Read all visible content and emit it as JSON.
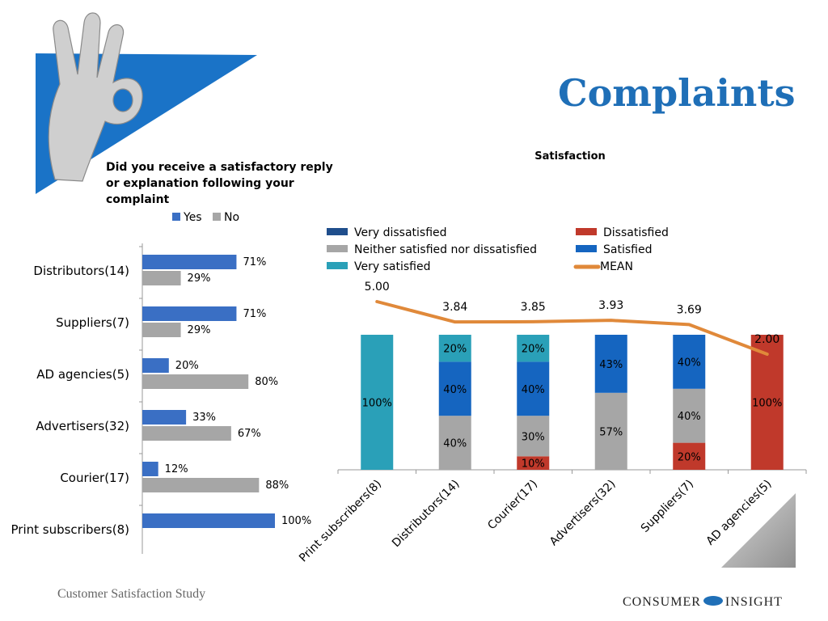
{
  "slide": {
    "title": "Complaints",
    "question": "Did you receive a satisfactory reply or explanation following your complaint",
    "footer_left": "Customer Satisfaction Study",
    "footer_brand_left": "CONSUMER",
    "footer_brand_right": "INSIGHT"
  },
  "colors": {
    "yes": "#3a6fc4",
    "no": "#a6a6a6",
    "very_dissatisfied": "#1f4e8c",
    "dissatisfied": "#c0392b",
    "neither": "#a6a6a6",
    "satisfied": "#1565c0",
    "very_satisfied": "#2aa0b8",
    "mean": "#e0893a",
    "title": "#1f6fb7"
  },
  "chart_data": [
    {
      "type": "bar",
      "orientation": "horizontal",
      "categories": [
        "Distributors(14)",
        "Suppliers(7)",
        "AD agencies(5)",
        "Advertisers(32)",
        "Courier(17)",
        "Print subscribers(8)"
      ],
      "series": [
        {
          "name": "Yes",
          "values": [
            71,
            71,
            20,
            33,
            12,
            100
          ],
          "labels": [
            "71%",
            "71%",
            "20%",
            "33%",
            "12%",
            "100%"
          ]
        },
        {
          "name": "No",
          "values": [
            29,
            29,
            80,
            67,
            88,
            0
          ],
          "labels": [
            "29%",
            "29%",
            "80%",
            "67%",
            "88%",
            ""
          ]
        }
      ],
      "xlim": [
        0,
        100
      ],
      "legend": "top"
    },
    {
      "type": "bar",
      "stacked": true,
      "title": "Satisfaction",
      "categories": [
        "Print subscribers(8)",
        "Distributors(14)",
        "Courier(17)",
        "Advertisers(32)",
        "Suppliers(7)",
        "AD agencies(5)"
      ],
      "series": [
        {
          "name": "Very dissatisfied",
          "values": [
            0,
            0,
            0,
            0,
            0,
            0
          ],
          "labels": [
            "",
            "",
            "",
            "",
            "",
            ""
          ]
        },
        {
          "name": "Dissatisfied",
          "values": [
            0,
            0,
            10,
            0,
            20,
            100
          ],
          "labels": [
            "",
            "",
            "10%",
            "",
            "20%",
            "100%"
          ]
        },
        {
          "name": "Neither satisfied nor dissatisfied",
          "values": [
            0,
            40,
            30,
            57,
            40,
            0
          ],
          "labels": [
            "",
            "40%",
            "30%",
            "57%",
            "40%",
            ""
          ]
        },
        {
          "name": "Satisfied",
          "values": [
            0,
            40,
            40,
            43,
            40,
            0
          ],
          "labels": [
            "",
            "40%",
            "40%",
            "43%",
            "40%",
            ""
          ]
        },
        {
          "name": "Very satisfied",
          "values": [
            100,
            20,
            20,
            0,
            0,
            0
          ],
          "labels": [
            "100%",
            "20%",
            "20%",
            "",
            "",
            ""
          ]
        }
      ],
      "mean": {
        "name": "MEAN",
        "values": [
          5.0,
          3.84,
          3.85,
          3.93,
          3.69,
          2.0
        ],
        "labels": [
          "5.00",
          "3.84",
          "3.85",
          "3.93",
          "3.69",
          "2.00"
        ]
      },
      "ylim": [
        0,
        100
      ],
      "legend": "top"
    }
  ]
}
